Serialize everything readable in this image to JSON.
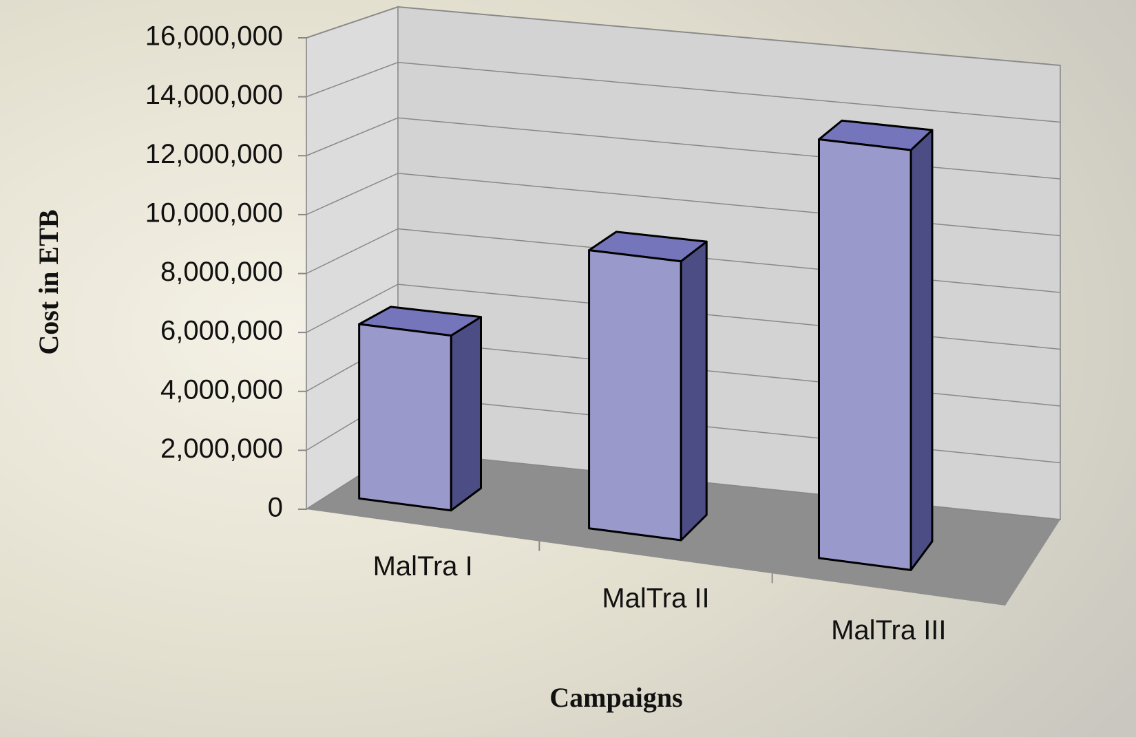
{
  "chart_data": {
    "type": "bar3d",
    "x_label": "Campaigns",
    "y_label": "Cost in ETB",
    "categories": [
      "MalTra I",
      "MalTra II",
      "MalTra III"
    ],
    "values": [
      6000000,
      9500000,
      14200000
    ],
    "color": "#9999cc",
    "ylim": [
      0,
      16000000
    ],
    "yticks": [
      0,
      {
        "value": 2000000,
        "label": "2,000,000"
      },
      {
        "value": 4000000,
        "label": "4,000,000"
      },
      {
        "value": 6000000,
        "label": "6,000,000"
      },
      {
        "value": 8000000,
        "label": "8,000,000"
      },
      {
        "value": 10000000,
        "label": "10,000,000"
      },
      {
        "value": 12000000,
        "label": "12,000,000"
      },
      {
        "value": 14000000,
        "label": "14,000,000"
      },
      {
        "value": 16000000,
        "label": "16,000,000"
      }
    ],
    "grid": true
  }
}
